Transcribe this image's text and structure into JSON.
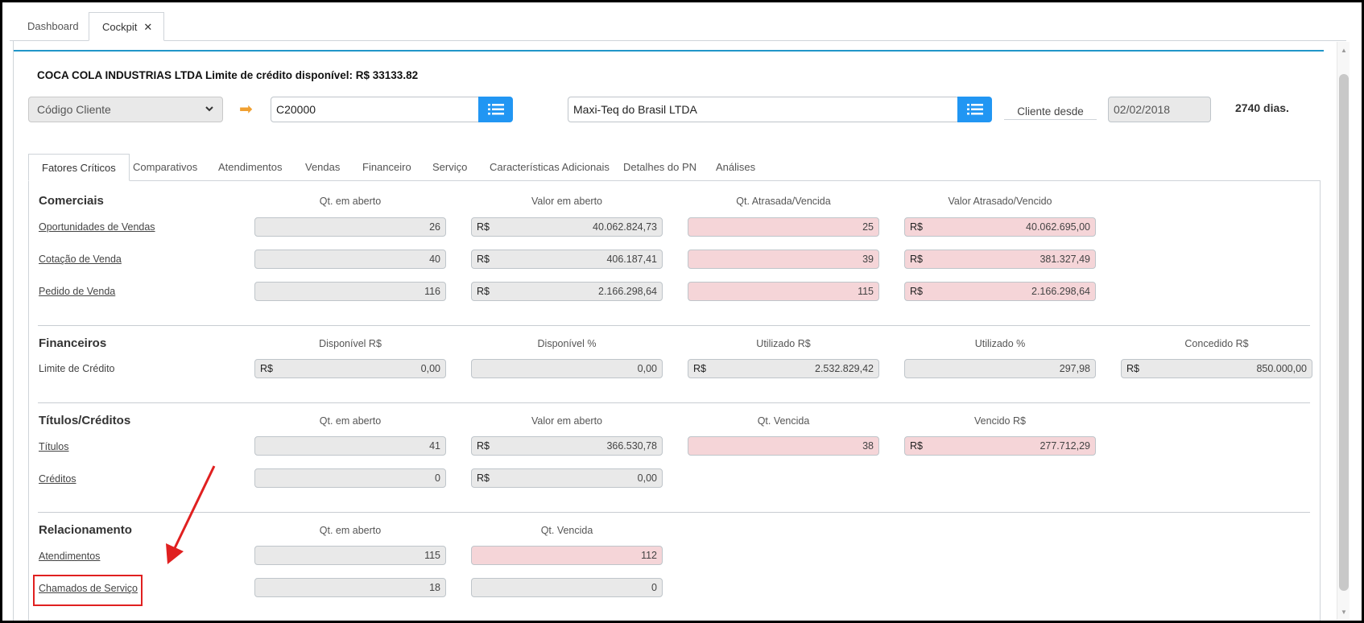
{
  "app_tabs": {
    "dashboard": "Dashboard",
    "cockpit": "Cockpit",
    "close": "✕"
  },
  "header": {
    "title": "COCA COLA INDUSTRIAS LTDA Limite de crédito disponível: R$ 33133.82",
    "select_value": "Código Cliente",
    "code_value": "C20000",
    "name_value": "Maxi-Teq do Brasil LTDA",
    "since_label": "Cliente desde",
    "since_date": "02/02/2018",
    "days": "2740 dias."
  },
  "tabs": [
    "Fatores Críticos",
    "Comparativos",
    "Atendimentos",
    "Vendas",
    "Financeiro",
    "Serviço",
    "Características Adicionais",
    "Detalhes do PN",
    "Análises"
  ],
  "currency": "R$",
  "comerciais": {
    "title": "Comerciais",
    "headers": [
      "Qt. em aberto",
      "Valor em aberto",
      "Qt. Atrasada/Vencida",
      "Valor Atrasado/Vencido"
    ],
    "rows": [
      {
        "label": "Oportunidades de Vendas",
        "values": [
          "26",
          "40.062.824,73",
          "25",
          "40.062.695,00"
        ]
      },
      {
        "label": "Cotação de Venda",
        "values": [
          "40",
          "406.187,41",
          "39",
          "381.327,49"
        ]
      },
      {
        "label": "Pedido de Venda",
        "values": [
          "116",
          "2.166.298,64",
          "115",
          "2.166.298,64"
        ]
      }
    ]
  },
  "financeiros": {
    "title": "Financeiros",
    "headers": [
      "Disponível R$",
      "Disponível %",
      "Utilizado R$",
      "Utilizado %",
      "Concedido R$"
    ],
    "rows": [
      {
        "label": "Limite de Crédito",
        "values": [
          "0,00",
          "0,00",
          "2.532.829,42",
          "297,98",
          "850.000,00"
        ]
      }
    ]
  },
  "titulos": {
    "title": "Títulos/Créditos",
    "headers": [
      "Qt. em aberto",
      "Valor em aberto",
      "Qt. Vencida",
      "Vencido R$"
    ],
    "rows": [
      {
        "label": "Títulos",
        "values": [
          "41",
          "366.530,78",
          "38",
          "277.712,29"
        ]
      },
      {
        "label": "Créditos",
        "values": [
          "0",
          "0,00"
        ]
      }
    ]
  },
  "relacionamento": {
    "title": "Relacionamento",
    "headers": [
      "Qt. em aberto",
      "Qt. Vencida"
    ],
    "rows": [
      {
        "label": "Atendimentos",
        "values": [
          "115",
          "112"
        ]
      },
      {
        "label": "Chamados de Serviço",
        "values": [
          "18",
          "0"
        ]
      }
    ]
  },
  "colors": {
    "accent": "#2196f3",
    "overdue": "#f5d5d8",
    "readonly": "#e9e9e9",
    "annotation": "#e02020",
    "arrow": "#f0a030"
  },
  "icons": {
    "list_button": "list-icon",
    "arrow": "arrow-right-icon",
    "dropdown": "chevron-down-icon"
  }
}
